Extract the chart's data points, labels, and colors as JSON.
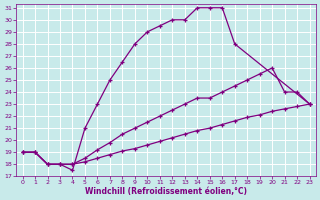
{
  "xlabel": "Windchill (Refroidissement éolien,°C)",
  "bg_color": "#c8eaea",
  "line_color": "#800080",
  "grid_color": "#ffffff",
  "xlim": [
    -0.5,
    23.5
  ],
  "ylim": [
    17,
    31.3
  ],
  "xticks": [
    0,
    1,
    2,
    3,
    4,
    5,
    6,
    7,
    8,
    9,
    10,
    11,
    12,
    13,
    14,
    15,
    16,
    17,
    18,
    19,
    20,
    21,
    22,
    23
  ],
  "yticks": [
    17,
    18,
    19,
    20,
    21,
    22,
    23,
    24,
    25,
    26,
    27,
    28,
    29,
    30,
    31
  ],
  "curve1_x": [
    0,
    1,
    2,
    3,
    4,
    5,
    6,
    7,
    8,
    9,
    10,
    11,
    12,
    13,
    14,
    15,
    16,
    17,
    23
  ],
  "curve1_y": [
    19,
    19,
    18,
    18,
    17.5,
    21,
    23,
    25,
    26.5,
    28,
    29,
    29.5,
    30,
    30,
    31,
    31,
    31,
    28,
    23
  ],
  "curve2_x": [
    0,
    1,
    2,
    3,
    4,
    5,
    6,
    7,
    8,
    9,
    10,
    11,
    12,
    13,
    14,
    15,
    16,
    17,
    18,
    19,
    20,
    21,
    22,
    23
  ],
  "curve2_y": [
    19,
    19,
    18,
    18,
    18,
    18.5,
    19.2,
    19.8,
    20.5,
    21,
    21.5,
    22,
    22.5,
    23,
    23.5,
    23.5,
    24,
    24.5,
    25,
    25.5,
    26,
    24,
    24,
    23
  ],
  "curve3_x": [
    0,
    1,
    2,
    3,
    4,
    5,
    6,
    7,
    8,
    9,
    10,
    11,
    12,
    13,
    14,
    15,
    16,
    17,
    18,
    19,
    20,
    21,
    22,
    23
  ],
  "curve3_y": [
    19,
    19,
    18,
    18,
    18,
    18.2,
    18.5,
    18.8,
    19.1,
    19.3,
    19.6,
    19.9,
    20.2,
    20.5,
    20.8,
    21,
    21.3,
    21.6,
    21.9,
    22.1,
    22.4,
    22.6,
    22.8,
    23
  ]
}
